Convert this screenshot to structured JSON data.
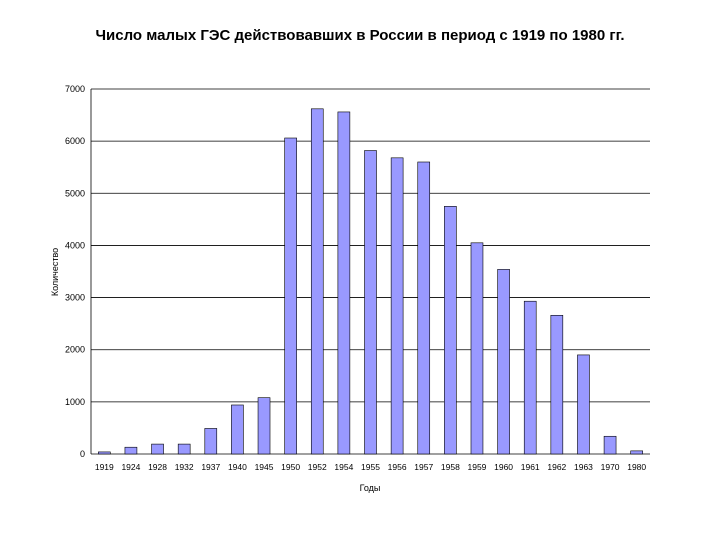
{
  "chart_data": {
    "type": "bar",
    "title": "Число малых ГЭС действовавших в России в период с 1919 по 1980 гг.",
    "xlabel": "Годы",
    "ylabel": "Количество",
    "ylim": [
      0,
      7000
    ],
    "yticks": [
      "0",
      "1000",
      "2000",
      "3000",
      "4000",
      "5000",
      "6000",
      "7000"
    ],
    "ytick_values": [
      0,
      1000,
      2000,
      3000,
      4000,
      5000,
      6000,
      7000
    ],
    "grid": true,
    "legend": "none",
    "categories": [
      "1919",
      "1924",
      "1928",
      "1932",
      "1937",
      "1940",
      "1945",
      "1950",
      "1952",
      "1954",
      "1955",
      "1956",
      "1957",
      "1958",
      "1959",
      "1960",
      "1961",
      "1962",
      "1963",
      "1970",
      "1980"
    ],
    "values": [
      40,
      130,
      190,
      190,
      490,
      940,
      1080,
      6060,
      6620,
      6560,
      5820,
      5680,
      5600,
      4750,
      4050,
      3540,
      2930,
      2660,
      1900,
      340,
      60
    ],
    "colors": {
      "bar": "#9999ff",
      "bar_stroke": "#000000",
      "grid": "#000000"
    }
  }
}
